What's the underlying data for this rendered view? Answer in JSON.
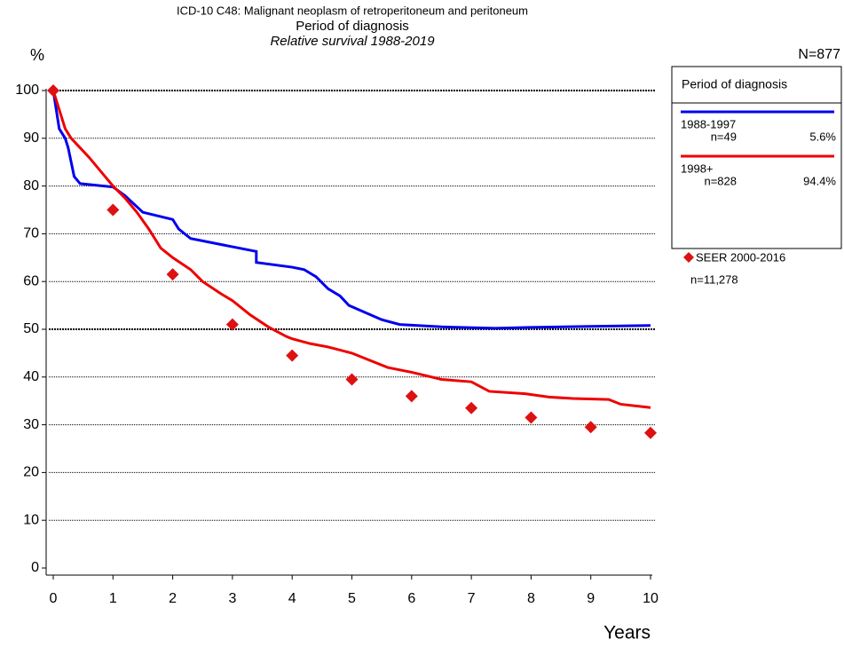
{
  "chart_data": {
    "type": "line",
    "title": "ICD-10 C48: Malignant neoplasm of retroperitoneum and peritoneum",
    "subtitle": "Period of diagnosis",
    "subtitle2": "Relative survival 1988-2019",
    "y_label": "%",
    "n_label": "N=877",
    "x_label": "Years",
    "xlim": [
      0,
      10
    ],
    "xticks": [
      0,
      1,
      2,
      3,
      4,
      5,
      6,
      7,
      8,
      9,
      10
    ],
    "ylim": [
      0,
      100
    ],
    "yticks": [
      0,
      10,
      20,
      30,
      40,
      50,
      60,
      70,
      80,
      90,
      100
    ],
    "grid": true,
    "bold_gridlines": [
      50,
      100
    ],
    "legend_title": "Period of diagnosis",
    "legend_position": "right",
    "series": [
      {
        "name": "1988-1997",
        "n": "n=49",
        "share": "5.6%",
        "color": "#0000ee",
        "style": "line",
        "x": [
          0,
          0.05,
          0.1,
          0.2,
          0.25,
          0.3,
          0.35,
          0.45,
          1.0,
          1.2,
          1.5,
          2.0,
          2.1,
          2.3,
          3.4,
          3.4,
          4.0,
          4.2,
          4.4,
          4.6,
          4.8,
          4.95,
          5.5,
          5.8,
          6.5,
          7.4,
          8,
          9,
          10
        ],
        "values": [
          100,
          96,
          92,
          90,
          88,
          85,
          82,
          80.5,
          79.8,
          78,
          74.5,
          73,
          71,
          69,
          66.3,
          64,
          63,
          62.5,
          61,
          58.5,
          57,
          55,
          52,
          51,
          50.5,
          50.2,
          50.4,
          50.6,
          50.8
        ]
      },
      {
        "name": "1998+",
        "n": "n=828",
        "share": "94.4%",
        "color": "#ee0000",
        "style": "line",
        "x": [
          0,
          0.1,
          0.2,
          0.3,
          0.45,
          0.6,
          0.8,
          1.0,
          1.2,
          1.4,
          1.6,
          1.8,
          2.0,
          2.3,
          2.5,
          2.8,
          3.0,
          3.3,
          3.6,
          3.9,
          4.0,
          4.3,
          4.6,
          5.0,
          5.3,
          5.6,
          6.0,
          6.5,
          7.0,
          7.3,
          7.9,
          8.3,
          8.7,
          9.3,
          9.5,
          10
        ],
        "values": [
          100,
          96,
          92,
          90,
          88,
          86,
          83,
          80,
          77.5,
          74.5,
          71,
          67,
          65,
          62.5,
          60,
          57.5,
          56,
          53,
          50.5,
          48.5,
          48,
          47,
          46.3,
          45,
          43.5,
          42,
          41,
          39.5,
          39,
          37,
          36.5,
          35.8,
          35.5,
          35.3,
          34.3,
          33.6
        ]
      },
      {
        "name": "SEER 2000-2016",
        "n": "n=11,278",
        "color": "#dd1111",
        "style": "diamond",
        "x": [
          0,
          1,
          2,
          3,
          4,
          5,
          6,
          7,
          8,
          9,
          10
        ],
        "values": [
          100,
          75,
          61.5,
          51,
          44.5,
          39.5,
          36,
          33.5,
          31.5,
          29.5,
          28.3
        ]
      }
    ]
  }
}
